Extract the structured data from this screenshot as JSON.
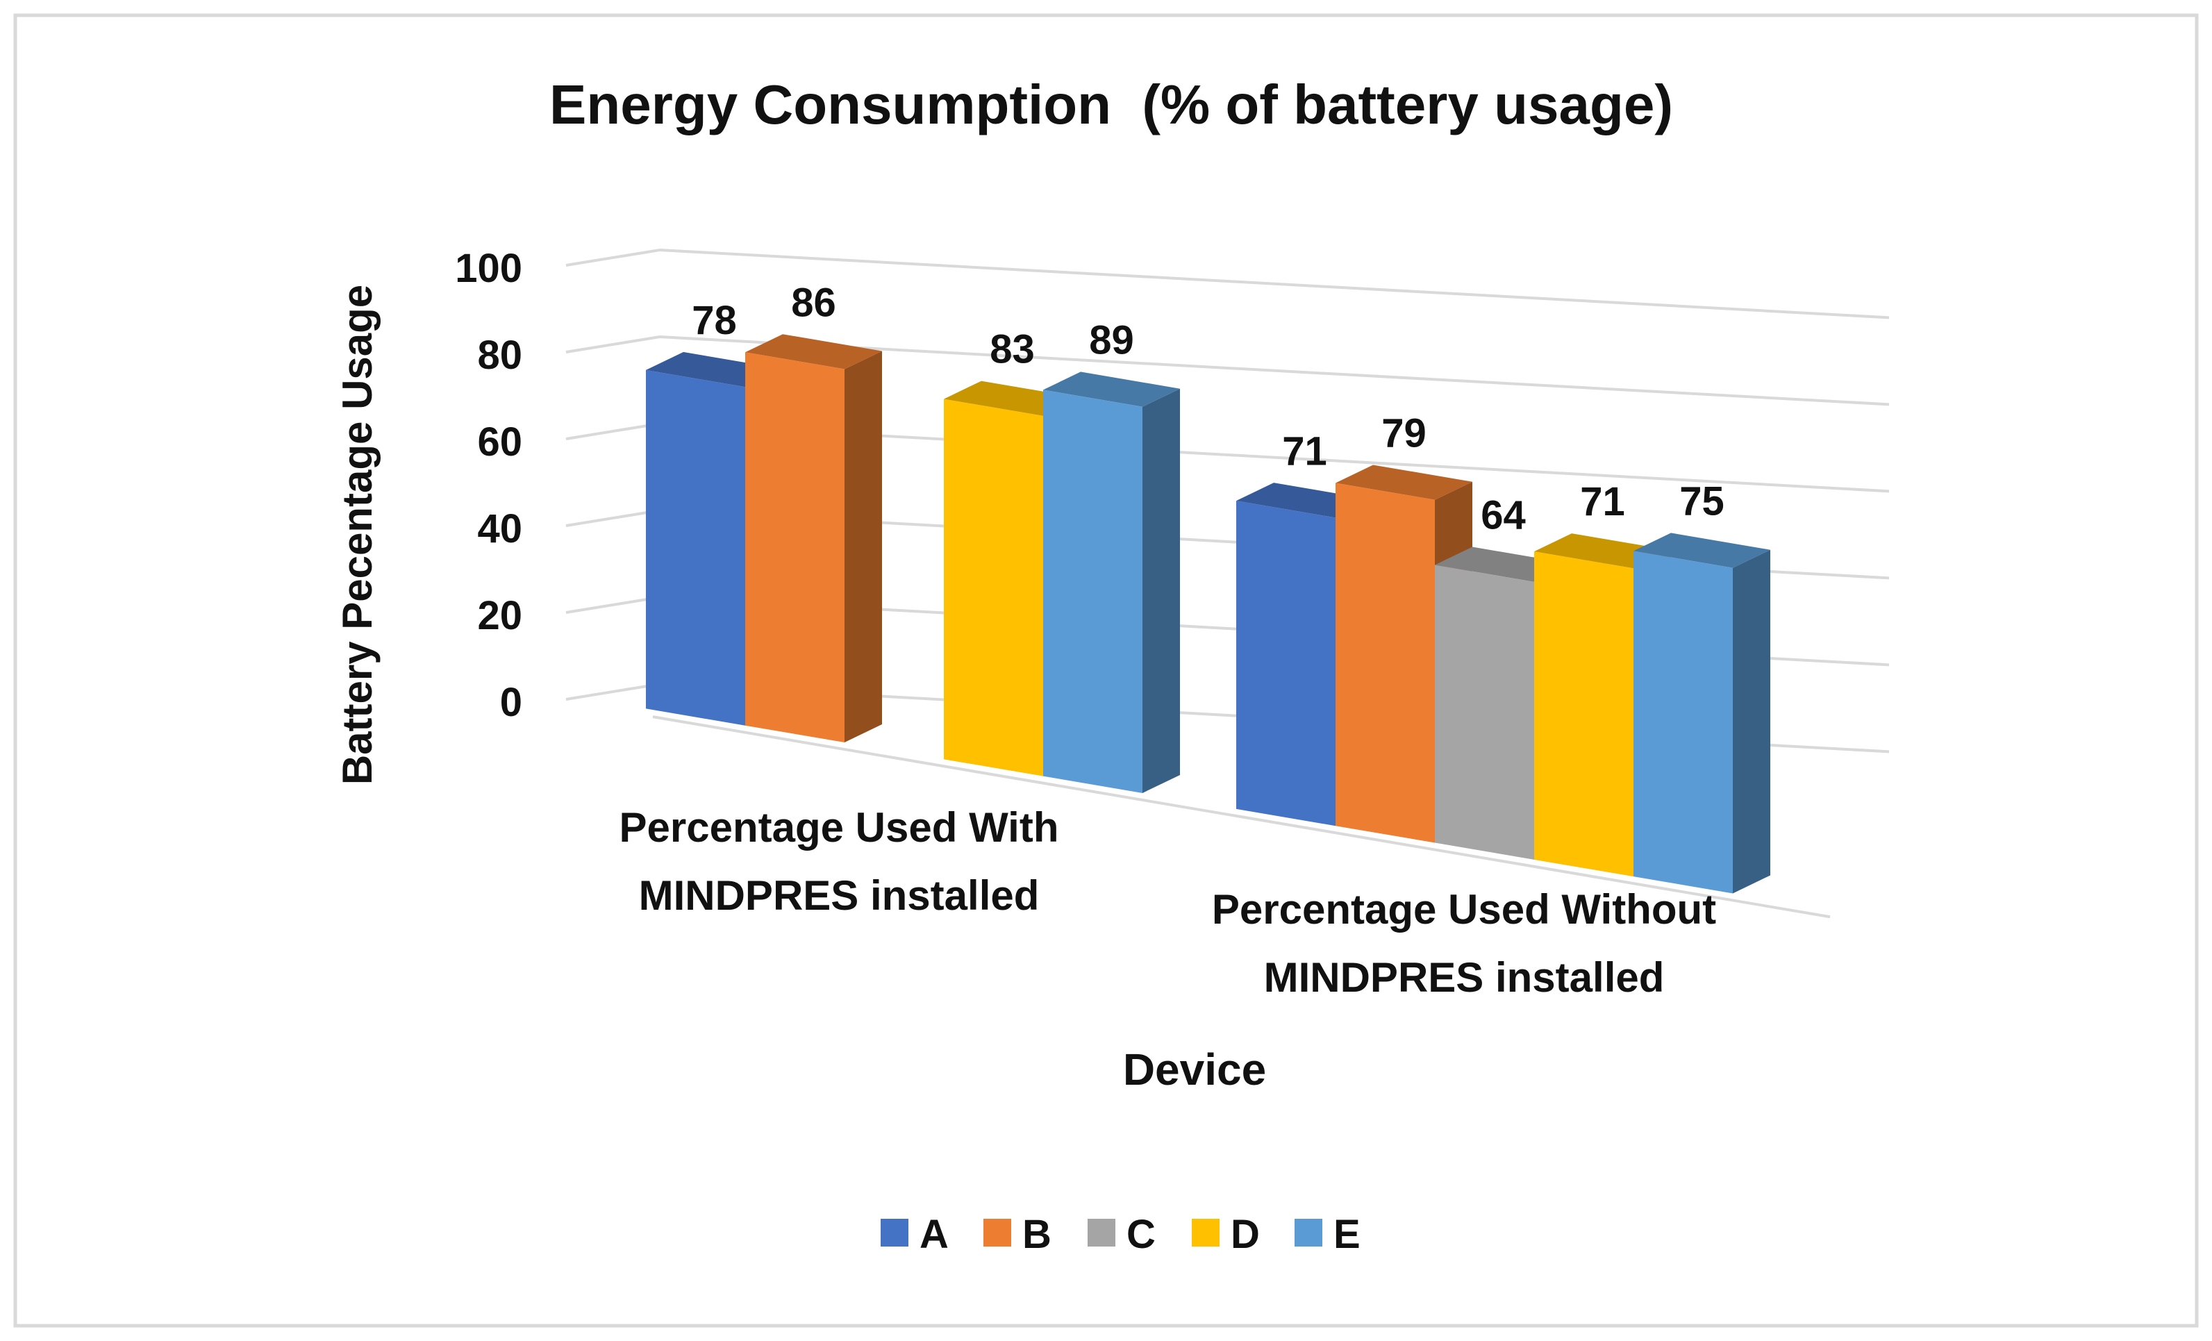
{
  "chart_data": {
    "type": "bar",
    "title": "Energy Consumption  (% of battery usage)",
    "xlabel": "Device",
    "ylabel": "Battery Pecentage Usage",
    "ylim": [
      0,
      100
    ],
    "yticks": [
      0,
      20,
      40,
      60,
      80,
      100
    ],
    "grid": true,
    "legend_position": "bottom",
    "categories": [
      "Percentage Used With MINDPRES installed",
      "Percentage Used Without MINDPRES installed"
    ],
    "category_lines": [
      [
        "Percentage Used With",
        "MINDPRES installed"
      ],
      [
        "Percentage Used Without",
        "MINDPRES installed"
      ]
    ],
    "series": [
      {
        "name": "A",
        "color": "#4472C4",
        "values": [
          78,
          71
        ]
      },
      {
        "name": "B",
        "color": "#ED7D31",
        "values": [
          86,
          79
        ]
      },
      {
        "name": "C",
        "color": "#A5A5A5",
        "values": [
          null,
          64
        ]
      },
      {
        "name": "D",
        "color": "#FFC000",
        "values": [
          83,
          71
        ]
      },
      {
        "name": "E",
        "color": "#5B9BD5",
        "values": [
          89,
          75
        ]
      }
    ]
  }
}
